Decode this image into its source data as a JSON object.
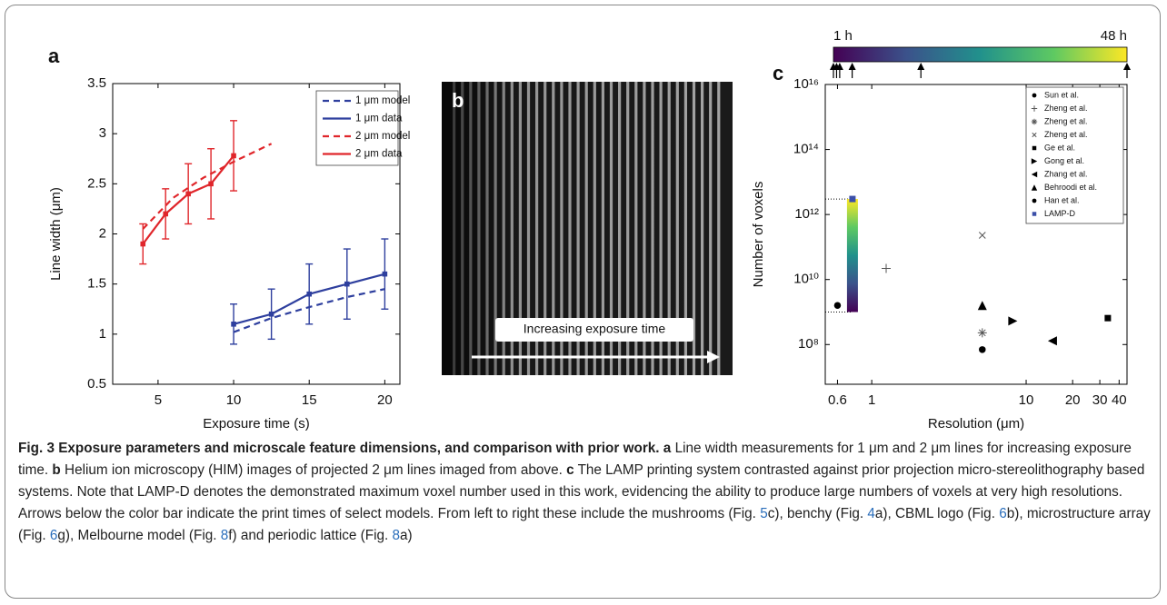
{
  "chart_data": [
    {
      "type": "line",
      "panel_label": "a",
      "xlabel": "Exposure time (s)",
      "ylabel": "Line width (μm)",
      "xlim": [
        2,
        21
      ],
      "ylim": [
        0.5,
        3.5
      ],
      "xticks": [
        5,
        10,
        15,
        20
      ],
      "yticks": [
        0.5,
        1,
        1.5,
        2,
        2.5,
        3,
        3.5
      ],
      "legend": "upper right",
      "series": [
        {
          "name": "1 μm model",
          "color": "#2e3f9e",
          "dash": true,
          "x": [
            10,
            12.5,
            15,
            17.5,
            20
          ],
          "values": [
            1.02,
            1.16,
            1.27,
            1.37,
            1.45
          ]
        },
        {
          "name": "1 μm data",
          "color": "#2e3f9e",
          "dash": false,
          "marker": "square",
          "x": [
            10,
            12.5,
            15,
            17.5,
            20
          ],
          "values": [
            1.1,
            1.2,
            1.4,
            1.5,
            1.6
          ],
          "errors": [
            0.2,
            0.25,
            0.3,
            0.35,
            0.35
          ]
        },
        {
          "name": "2 μm model",
          "color": "#e0262b",
          "dash": true,
          "x": [
            4,
            6,
            8,
            10,
            12.5
          ],
          "values": [
            2.05,
            2.36,
            2.56,
            2.72,
            2.9
          ]
        },
        {
          "name": "2 μm data",
          "color": "#e0262b",
          "dash": false,
          "marker": "square",
          "x": [
            4,
            5.5,
            7,
            8.5,
            10
          ],
          "values": [
            1.9,
            2.2,
            2.4,
            2.5,
            2.78
          ],
          "errors": [
            0.2,
            0.25,
            0.3,
            0.35,
            0.35
          ]
        }
      ]
    },
    {
      "type": "scatter",
      "panel_label": "c",
      "xlabel": "Resolution (μm)",
      "ylabel": "Number of voxels",
      "xscale": "log",
      "yscale": "log",
      "xlim": [
        0.5,
        45
      ],
      "ylim": [
        6000000,
        1e+16
      ],
      "xticks": [
        0.6,
        1,
        10,
        20,
        30,
        40
      ],
      "yticks": [
        {
          "value": 100000000,
          "label": "10⁸"
        },
        {
          "value": 10000000000,
          "label": "10¹⁰"
        },
        {
          "value": 1000000000000,
          "label": "10¹²"
        },
        {
          "value": 100000000000000,
          "label": "10¹⁴"
        },
        {
          "value": 1e+16,
          "label": "10¹⁶"
        }
      ],
      "legend": "upper right",
      "series": [
        {
          "name": "Sun et al.",
          "marker": "circle",
          "color": "#000000",
          "x": [
            0.6
          ],
          "values": [
            1600000000
          ]
        },
        {
          "name": "Zheng et al.",
          "marker": "plus",
          "color": "#555555",
          "x": [
            1.24
          ],
          "values": [
            22000000000
          ]
        },
        {
          "name": "Zheng et al.",
          "marker": "asterisk",
          "color": "#555555",
          "x": [
            5.2
          ],
          "values": [
            230000000
          ]
        },
        {
          "name": "Zheng et al.",
          "marker": "cross",
          "color": "#555555",
          "x": [
            5.2
          ],
          "values": [
            230000000000
          ]
        },
        {
          "name": "Ge et al.",
          "marker": "square",
          "color": "#000000",
          "x": [
            33.8
          ],
          "values": [
            650000000
          ]
        },
        {
          "name": "Gong et al.",
          "marker": "triangle-right",
          "color": "#000000",
          "x": [
            8.2
          ],
          "values": [
            530000000
          ]
        },
        {
          "name": "Zhang et al.",
          "marker": "triangle-left",
          "color": "#000000",
          "x": [
            14.8
          ],
          "values": [
            130000000
          ]
        },
        {
          "name": "Behroodi et al.",
          "marker": "triangle-up",
          "color": "#000000",
          "x": [
            5.2
          ],
          "values": [
            1600000000
          ]
        },
        {
          "name": "Han et al.",
          "marker": "circle",
          "color": "#000000",
          "x": [
            5.2
          ],
          "values": [
            70000000
          ]
        },
        {
          "name": "LAMP-D",
          "marker": "square",
          "color": "#3b4fa8",
          "x": [
            0.75
          ],
          "values": [
            3000000000000
          ]
        }
      ],
      "range_bar": {
        "x": 0.75,
        "low": 1000000000,
        "high": 3000000000000
      },
      "colorbar": {
        "lim": [
          1,
          48
        ],
        "ticks": [
          {
            "value": 1,
            "label": "1 h"
          },
          {
            "value": 48,
            "label": "48 h"
          }
        ],
        "arrows": [
          1,
          1.5,
          2,
          4,
          15,
          48
        ]
      }
    }
  ],
  "panel_b": {
    "label": "b",
    "annotation": "Increasing exposure time"
  },
  "caption": [
    {
      "text": "Fig. 3 Exposure parameters and microscale feature dimensions, and comparison with prior work.",
      "style": "bold"
    },
    {
      "text": " a",
      "style": "bold"
    },
    {
      "text": " Line width measurements for 1 μm and 2 μm lines for increasing exposure time.",
      "style": "normal"
    },
    {
      "text": " b",
      "style": "bold"
    },
    {
      "text": " Helium ion microscopy (HIM) images of projected 2 μm lines imaged from above.",
      "style": "normal"
    },
    {
      "text": " c",
      "style": "bold"
    },
    {
      "text": " The LAMP printing system contrasted against prior projection micro-stereolithography based systems. Note that LAMP-D denotes the demonstrated maximum voxel number used in this work, evidencing the ability to produce large numbers of voxels at very high resolutions. Arrows below the color bar indicate the print times of select models. From left to right these include the mushrooms (Fig. ",
      "style": "normal"
    },
    {
      "text": "5",
      "style": "link"
    },
    {
      "text": "c), benchy (Fig. ",
      "style": "normal"
    },
    {
      "text": "4",
      "style": "link"
    },
    {
      "text": "a), CBML logo (Fig. ",
      "style": "normal"
    },
    {
      "text": "6",
      "style": "link"
    },
    {
      "text": "b), microstructure array (Fig. ",
      "style": "normal"
    },
    {
      "text": "6",
      "style": "link"
    },
    {
      "text": "g), Melbourne model (Fig. ",
      "style": "normal"
    },
    {
      "text": "8",
      "style": "link"
    },
    {
      "text": "f) and periodic lattice (Fig. ",
      "style": "normal"
    },
    {
      "text": "8",
      "style": "link"
    },
    {
      "text": "a)",
      "style": "normal"
    }
  ]
}
